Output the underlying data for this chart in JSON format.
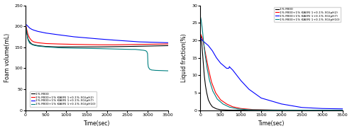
{
  "left_chart": {
    "xlabel": "Time(sec)",
    "ylabel": "Foam volume(mL)",
    "xlim": [
      0,
      3500
    ],
    "ylim": [
      0,
      250
    ],
    "yticks": [
      0,
      50,
      100,
      150,
      200,
      250
    ],
    "xticks": [
      0,
      500,
      1000,
      1500,
      2000,
      2500,
      3000,
      3500
    ],
    "legend": [
      "1% MI00",
      "1% MI00+1% KAERI 1+0.1% XG(pH2)",
      "1% MI00+1% KAERI 1+0.1% XG(pH7)",
      "1% MI00+1% KAERI 1+0.1% XG(pH10)"
    ],
    "colors": [
      "black",
      "red",
      "blue",
      "#008080"
    ],
    "series": {
      "black": {
        "x": [
          0,
          30,
          60,
          100,
          150,
          200,
          300,
          500,
          800,
          1200,
          1800,
          2500,
          3000,
          3500
        ],
        "y": [
          205,
          185,
          170,
          163,
          158,
          156,
          154,
          152,
          151,
          151,
          151,
          152,
          153,
          154
        ]
      },
      "red": {
        "x": [
          0,
          30,
          60,
          100,
          150,
          200,
          300,
          500,
          800,
          1200,
          1800,
          2200,
          2800,
          3500
        ],
        "y": [
          205,
          192,
          180,
          172,
          166,
          163,
          161,
          159,
          158,
          157,
          156,
          156,
          157,
          158
        ]
      },
      "blue": {
        "x": [
          0,
          30,
          60,
          100,
          150,
          200,
          300,
          500,
          800,
          1200,
          1800,
          2200,
          2800,
          3500
        ],
        "y": [
          205,
          203,
          200,
          196,
          193,
          191,
          188,
          184,
          180,
          175,
          170,
          167,
          163,
          161
        ]
      },
      "teal": {
        "x": [
          0,
          30,
          60,
          100,
          150,
          200,
          300,
          500,
          800,
          1200,
          1800,
          2200,
          2600,
          2700,
          2800,
          2900,
          2950,
          2980,
          3000,
          3010,
          3020,
          3050,
          3100,
          3200,
          3500
        ],
        "y": [
          205,
          185,
          168,
          160,
          157,
          155,
          153,
          151,
          149,
          148,
          147,
          146,
          145,
          145,
          144,
          143,
          142,
          140,
          135,
          110,
          103,
          98,
          96,
          95,
          94
        ]
      }
    }
  },
  "right_chart": {
    "xlabel": "Time(sec)",
    "ylabel": "Liquid fraction(%)",
    "xlim": [
      0,
      3500
    ],
    "ylim": [
      0,
      30
    ],
    "yticks": [
      0,
      5,
      10,
      15,
      20,
      25,
      30
    ],
    "xticks": [
      0,
      500,
      1000,
      1500,
      2000,
      2500,
      3000,
      3500
    ],
    "legend": [
      "1% MI00",
      "1% MI00+1% KAERI 1+0.1% XG(pH2)",
      "1% MI00+1% KAERI 1+0.1% XG(pH7)",
      "1% MI00+1% KAERI 1+0.1% XG(pH10)"
    ],
    "colors": [
      "black",
      "red",
      "blue",
      "#008080"
    ],
    "series": {
      "black": {
        "x": [
          0,
          20,
          40,
          60,
          80,
          100,
          130,
          160,
          200,
          250,
          300,
          400,
          500,
          700,
          1000,
          1500,
          3500
        ],
        "y": [
          22,
          21,
          19,
          16,
          13,
          10,
          7,
          5,
          3,
          1.8,
          1.0,
          0.4,
          0.15,
          0.05,
          0.01,
          0.005,
          0.005
        ]
      },
      "red": {
        "x": [
          0,
          20,
          40,
          70,
          100,
          150,
          200,
          280,
          380,
          500,
          650,
          800,
          1000,
          1300,
          1800,
          2500,
          3500
        ],
        "y": [
          22,
          21.5,
          21,
          20,
          18,
          15,
          12,
          8,
          5,
          3,
          1.8,
          1.0,
          0.5,
          0.2,
          0.08,
          0.03,
          0.03
        ]
      },
      "blue": {
        "x": [
          0,
          20,
          50,
          100,
          150,
          200,
          300,
          400,
          500,
          600,
          650,
          700,
          710,
          720,
          730,
          800,
          1000,
          1200,
          1500,
          2000,
          2500,
          3000,
          3500
        ],
        "y": [
          21,
          20.5,
          20,
          19.5,
          19,
          18.5,
          17,
          15,
          13.5,
          12.5,
          12,
          12,
          12.2,
          12.5,
          12.3,
          11.5,
          8.5,
          6,
          3.5,
          1.8,
          0.8,
          0.5,
          0.4
        ]
      },
      "teal": {
        "x": [
          0,
          20,
          50,
          80,
          120,
          170,
          230,
          310,
          420,
          560,
          720,
          920,
          1200,
          1800,
          2500,
          3500
        ],
        "y": [
          27,
          26,
          23.5,
          20,
          16,
          12,
          8.5,
          5.5,
          3.2,
          1.8,
          0.9,
          0.4,
          0.15,
          0.05,
          0.02,
          0.02
        ]
      }
    }
  }
}
